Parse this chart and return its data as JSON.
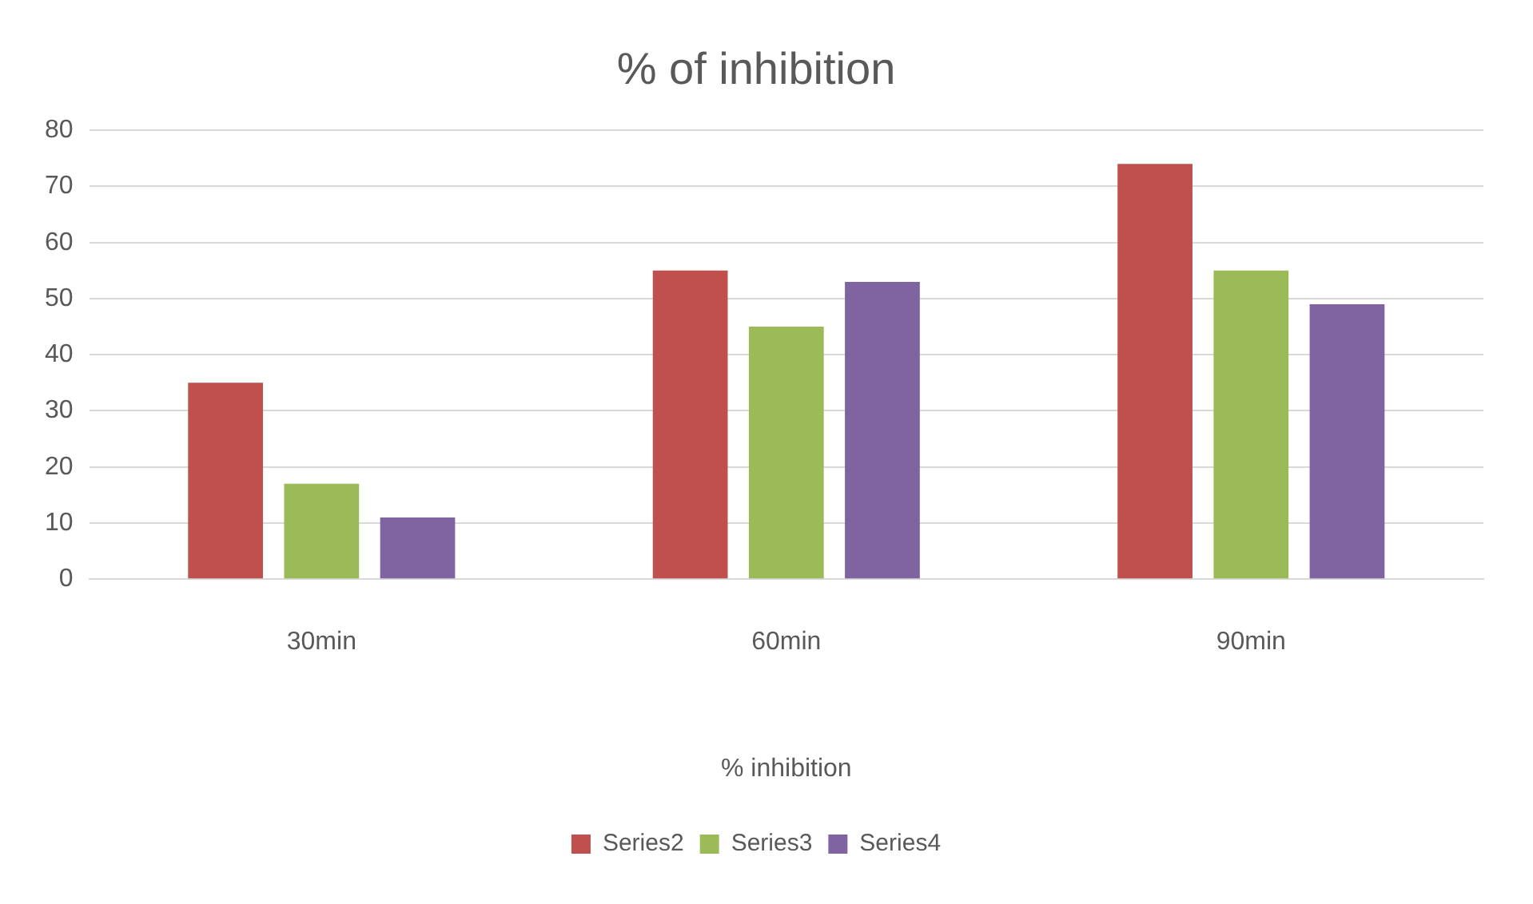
{
  "chart_data": {
    "type": "bar",
    "title": "% of inhibition",
    "xlabel": "% inhibition",
    "categories": [
      "30min",
      "60min",
      "90min"
    ],
    "series": [
      {
        "name": "Series2",
        "color": "#c0504d",
        "values": [
          35,
          55,
          74
        ]
      },
      {
        "name": "Series3",
        "color": "#9bbb59",
        "values": [
          17,
          45,
          55
        ]
      },
      {
        "name": "Series4",
        "color": "#8064a2",
        "values": [
          11,
          53,
          49
        ]
      }
    ],
    "ylim": [
      0,
      80
    ],
    "yticks": [
      0,
      10,
      20,
      30,
      40,
      50,
      60,
      70,
      80
    ],
    "grid": "y",
    "legend": "bottom"
  }
}
